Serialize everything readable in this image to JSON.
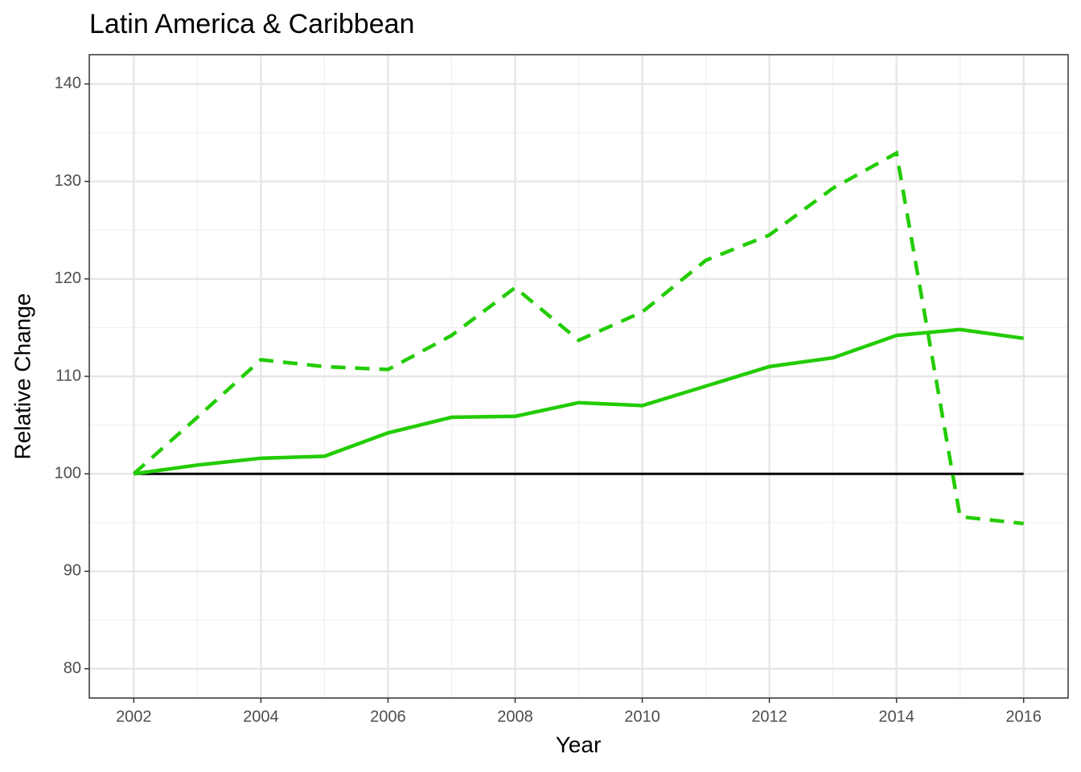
{
  "chart_data": {
    "type": "line",
    "title": "Latin America & Caribbean",
    "x_label": "Year",
    "y_label": "Relative Change",
    "x": [
      2002,
      2003,
      2004,
      2005,
      2006,
      2007,
      2008,
      2009,
      2010,
      2011,
      2012,
      2013,
      2014,
      2015,
      2016
    ],
    "series": [
      {
        "color": "#000000",
        "linestyle": "solid",
        "linewidth": 3,
        "values": [
          100,
          100,
          100,
          100,
          100,
          100,
          100,
          100,
          100,
          100,
          100,
          100,
          100,
          100,
          100
        ]
      },
      {
        "color": "#22cc00",
        "linestyle": "solid",
        "linewidth": 4.5,
        "values": [
          100,
          100.9,
          101.6,
          101.8,
          104.2,
          105.8,
          105.9,
          107.3,
          107.0,
          109.0,
          111.0,
          111.9,
          114.2,
          114.8,
          113.9
        ]
      },
      {
        "color": "#22cc00",
        "linestyle": "dashed",
        "linewidth": 4.5,
        "values": [
          100,
          105.8,
          111.7,
          111.0,
          110.7,
          114.2,
          119.1,
          113.7,
          116.6,
          121.9,
          124.5,
          129.3,
          132.9,
          95.6,
          94.9
        ]
      }
    ],
    "xlim": [
      2001.3,
      2016.7
    ],
    "ylim": [
      77,
      143
    ],
    "xticks": [
      2002,
      2004,
      2006,
      2008,
      2010,
      2012,
      2014,
      2016
    ],
    "yticks": [
      80,
      90,
      100,
      110,
      120,
      130,
      140
    ],
    "grid": true
  }
}
